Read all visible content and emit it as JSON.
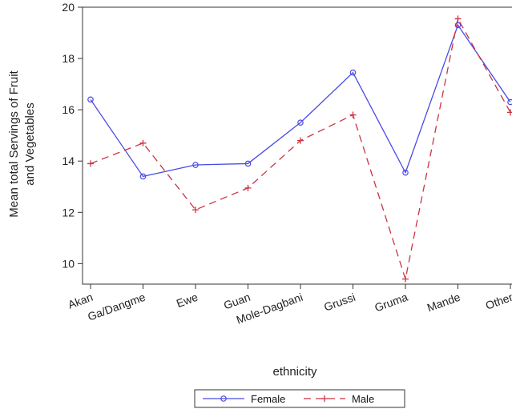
{
  "chart_data": {
    "type": "line",
    "xlabel": "ethnicity",
    "ylabel_lines": [
      "Mean total Servings of Fruit",
      "and Vegetables"
    ],
    "categories": [
      "Akan",
      "Ga/Dangme",
      "Ewe",
      "Guan",
      "Mole-Dagbani",
      "Grussi",
      "Gruma",
      "Mande",
      "Other"
    ],
    "ylim": [
      9.2,
      20
    ],
    "yticks": [
      10,
      12,
      14,
      16,
      18,
      20
    ],
    "grid": false,
    "legend_position": "bottom",
    "series": [
      {
        "name": "Female",
        "color": "#4a4ae6",
        "dash": "solid",
        "marker": "circle",
        "values": [
          16.4,
          13.4,
          13.85,
          13.9,
          15.5,
          17.45,
          13.55,
          19.3,
          16.3
        ]
      },
      {
        "name": "Male",
        "color": "#cc3344",
        "dash": "dashed",
        "marker": "plus",
        "values": [
          13.9,
          14.7,
          12.1,
          12.95,
          14.8,
          15.8,
          9.4,
          19.55,
          15.9
        ]
      }
    ]
  }
}
